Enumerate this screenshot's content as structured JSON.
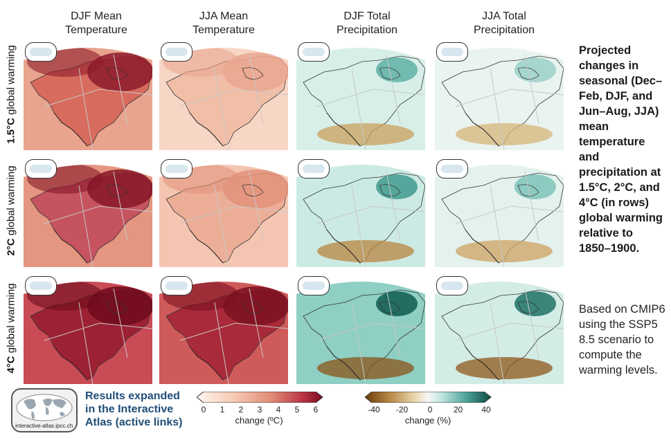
{
  "columns": [
    {
      "line1": "DJF Mean",
      "line2": "Temperature"
    },
    {
      "line1": "JJA Mean",
      "line2": "Temperature"
    },
    {
      "line1": "DJF Total",
      "line2": "Precipitation"
    },
    {
      "line1": "JJA Total",
      "line2": "Precipitation"
    }
  ],
  "rows": [
    {
      "level": "1.5°C",
      "suffix": " global warming"
    },
    {
      "level": "2°C",
      "suffix": " global warming"
    },
    {
      "level": "4°C",
      "suffix": " global warming"
    }
  ],
  "description": {
    "bold": "Projected changes in seasonal (Dec–Feb, DJF, and Jun–Aug, JJA) mean temperature and precipitation at 1.5°C, 2°C, and 4°C (in rows) global warming relative to 1850–1900.",
    "normal": "Based on CMIP6 using the SSP5 8.5 scenario to compute the warming levels."
  },
  "atlas": {
    "link_text": "Results expanded in the Interactive Atlas (active links)",
    "url": "interactive-atlas.ipcc.ch"
  },
  "temp_colorbar": {
    "ticks": [
      "0",
      "1",
      "2",
      "3",
      "4",
      "5",
      "6"
    ],
    "label": "change (ºC)"
  },
  "precip_colorbar": {
    "ticks": [
      "-40",
      "-20",
      "0",
      "20",
      "40"
    ],
    "label": "change (%)"
  },
  "colors": {
    "temp_low": "#fbe6da",
    "temp_high": "#7a0d1e",
    "precip_dry": "#8c5a1a",
    "precip_wet": "#0b5a50",
    "link_blue": "#1f4e79"
  }
}
